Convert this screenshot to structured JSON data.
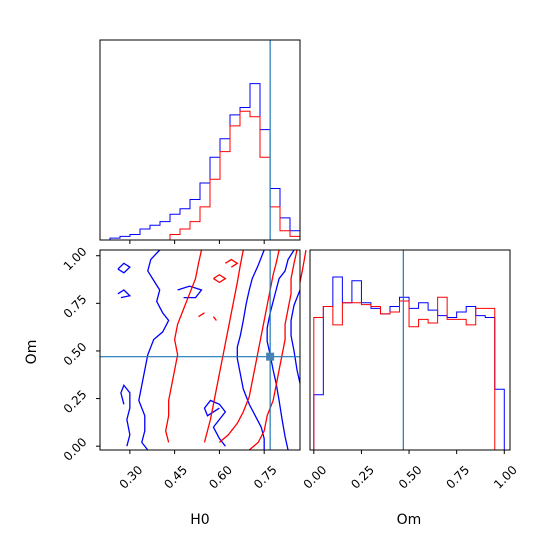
{
  "chart_data": [
    {
      "type": "histogram",
      "panel": "H0 marginal (top-left)",
      "xlim": [
        0.2,
        0.87
      ],
      "bins_edges": [
        0.2,
        0.2335,
        0.267,
        0.3005,
        0.334,
        0.3675,
        0.401,
        0.4345,
        0.468,
        0.5015,
        0.535,
        0.5685,
        0.602,
        0.6355,
        0.669,
        0.7025,
        0.736,
        0.7695,
        0.803,
        0.8365,
        0.87
      ],
      "truth": 0.77,
      "series": [
        {
          "color": "#0000ff",
          "values": [
            0.0,
            0.01,
            0.02,
            0.03,
            0.06,
            0.08,
            0.1,
            0.14,
            0.17,
            0.22,
            0.31,
            0.45,
            0.55,
            0.68,
            0.72,
            0.85,
            0.6,
            0.28,
            0.12,
            0.05
          ]
        },
        {
          "color": "#ff0000",
          "values": [
            0.0,
            0.0,
            0.0,
            0.0,
            0.0,
            0.0,
            0.0,
            0.03,
            0.06,
            0.1,
            0.18,
            0.33,
            0.48,
            0.62,
            0.7,
            0.67,
            0.45,
            0.18,
            0.05,
            0.02
          ]
        }
      ],
      "truth_color": "#1f77b4"
    },
    {
      "type": "contour",
      "panel": "H0 vs Om (bottom-left)",
      "xlabel": "H0",
      "ylabel": "Om",
      "xlim": [
        0.2,
        0.87
      ],
      "ylim": [
        -0.02,
        1.03
      ],
      "xticks": [
        "0.30",
        "0.45",
        "0.60",
        "0.75"
      ],
      "yticks": [
        "0.00",
        "0.25",
        "0.50",
        "0.75",
        "1.00"
      ],
      "truth": {
        "H0": 0.77,
        "Om": 0.47
      },
      "series": [
        {
          "color": "#0000ff",
          "note": "blue sample contours"
        },
        {
          "color": "#ff0000",
          "note": "red sample contours"
        }
      ]
    },
    {
      "type": "histogram",
      "panel": "Om marginal (bottom-right)",
      "xlabel": "Om",
      "xlim": [
        -0.02,
        1.03
      ],
      "xticks": [
        "0.00",
        "0.25",
        "0.50",
        "0.75",
        "1.00"
      ],
      "bins_edges": [
        0.0,
        0.05,
        0.1,
        0.15,
        0.2,
        0.25,
        0.3,
        0.35,
        0.4,
        0.45,
        0.5,
        0.55,
        0.6,
        0.65,
        0.7,
        0.75,
        0.8,
        0.85,
        0.9,
        0.95,
        1.0
      ],
      "truth": 0.47,
      "series": [
        {
          "color": "#0000ff",
          "values": [
            0.3,
            0.78,
            0.94,
            0.8,
            0.92,
            0.8,
            0.77,
            0.74,
            0.78,
            0.83,
            0.77,
            0.8,
            0.76,
            0.73,
            0.72,
            0.75,
            0.78,
            0.73,
            0.72,
            0.33
          ]
        },
        {
          "color": "#ff0000",
          "values": [
            0.72,
            0.78,
            0.68,
            0.8,
            0.8,
            0.79,
            0.78,
            0.74,
            0.75,
            0.81,
            0.67,
            0.71,
            0.69,
            0.83,
            0.71,
            0.71,
            0.68,
            0.77,
            0.77,
            0.0
          ]
        }
      ],
      "truth_color": "#1f77b4"
    }
  ]
}
